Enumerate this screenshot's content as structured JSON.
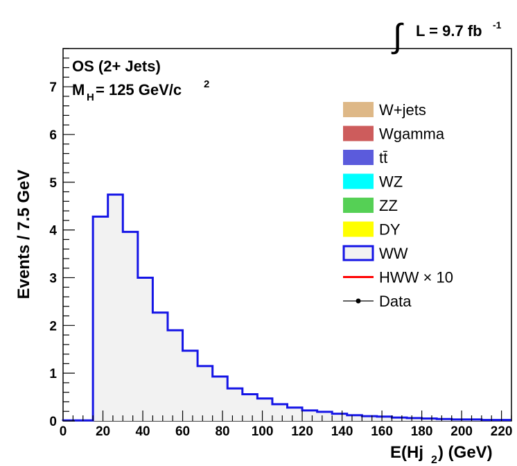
{
  "chart_data": {
    "type": "histogram",
    "luminosity": {
      "label": "L = 9.7 fb",
      "exponent": "-1"
    },
    "annotations": {
      "selection": "OS (2+ Jets)",
      "mass_main": "M",
      "mass_sub": "H",
      "mass_value": " = 125 GeV/c",
      "mass_exp": "2"
    },
    "xlabel": {
      "main": "E(Hj",
      "sub": "2",
      "tail": ") (GeV)"
    },
    "ylabel": "Events / 7.5 GeV",
    "xlim": [
      0,
      225
    ],
    "ylim": [
      0,
      7.8
    ],
    "xticks": [
      0,
      20,
      40,
      60,
      80,
      100,
      120,
      140,
      160,
      180,
      200,
      220
    ],
    "yticks": [
      0,
      1,
      2,
      3,
      4,
      5,
      6,
      7
    ],
    "bin_width": 7.5,
    "bins_x_start": 0,
    "ww_values": [
      0.01,
      0.01,
      4.28,
      4.74,
      3.96,
      3.0,
      2.27,
      1.9,
      1.47,
      1.15,
      0.93,
      0.68,
      0.56,
      0.47,
      0.35,
      0.28,
      0.22,
      0.19,
      0.15,
      0.12,
      0.1,
      0.09,
      0.07,
      0.06,
      0.05,
      0.04,
      0.03,
      0.03,
      0.02,
      0.02
    ],
    "legend_position": "top-right",
    "legend": [
      {
        "label": "W+jets",
        "kind": "fill",
        "color": "#deb887"
      },
      {
        "label": "Wgamma",
        "kind": "fill",
        "color": "#cd5c5c"
      },
      {
        "label": "tt̄",
        "kind": "fill",
        "color": "#5b5bdc"
      },
      {
        "label": "WZ",
        "kind": "fill",
        "color": "#00ffff"
      },
      {
        "label": "ZZ",
        "kind": "fill",
        "color": "#55d055"
      },
      {
        "label": "DY",
        "kind": "fill",
        "color": "#ffff00"
      },
      {
        "label": "WW",
        "kind": "outline",
        "color": "#1414e6",
        "fill": "#f2f2f2"
      },
      {
        "label": "HWW × 10",
        "kind": "line",
        "color": "#ff0000"
      },
      {
        "label": "Data",
        "kind": "marker",
        "color": "#000000"
      }
    ],
    "colors": {
      "ww_line": "#1414e6",
      "ww_fill": "#f2f2f2"
    }
  }
}
